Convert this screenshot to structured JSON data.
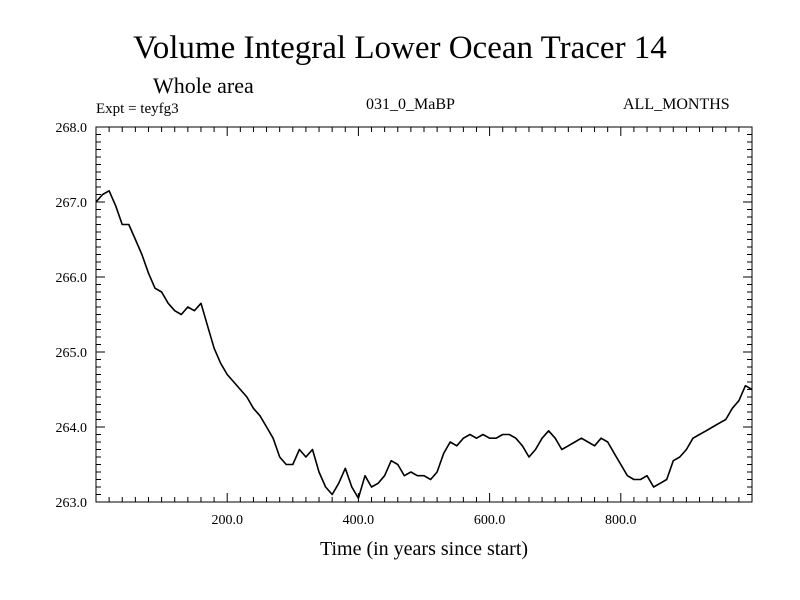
{
  "chart_data": {
    "type": "line",
    "title": "Volume Integral Lower Ocean Tracer 14",
    "subtitle": "Whole area",
    "experiment_label": "Expt = teyfg3",
    "run_label": "031_0_MaBP",
    "period_label": "ALL_MONTHS",
    "xlabel": "Time (in years since start)",
    "ylabel": "",
    "xlim": [
      0,
      1000
    ],
    "ylim": [
      263.0,
      268.0
    ],
    "xticks": [
      200.0,
      400.0,
      600.0,
      800.0
    ],
    "xtick_labels": [
      "200.0",
      "400.0",
      "600.0",
      "800.0"
    ],
    "yticks": [
      263.0,
      264.0,
      265.0,
      266.0,
      267.0,
      268.0
    ],
    "ytick_labels": [
      "263.0",
      "264.0",
      "265.0",
      "266.0",
      "267.0",
      "268.0"
    ],
    "grid": false,
    "series": [
      {
        "name": "Lower Ocean Tracer 14",
        "x": [
          0,
          10,
          20,
          30,
          40,
          50,
          60,
          70,
          80,
          90,
          100,
          110,
          120,
          130,
          140,
          150,
          160,
          170,
          180,
          190,
          200,
          210,
          220,
          230,
          240,
          250,
          260,
          270,
          280,
          290,
          300,
          310,
          320,
          330,
          340,
          350,
          360,
          370,
          380,
          390,
          400,
          410,
          420,
          430,
          440,
          450,
          460,
          470,
          480,
          490,
          500,
          510,
          520,
          530,
          540,
          550,
          560,
          570,
          580,
          590,
          600,
          610,
          620,
          630,
          640,
          650,
          660,
          670,
          680,
          690,
          700,
          710,
          720,
          730,
          740,
          750,
          760,
          770,
          780,
          790,
          800,
          810,
          820,
          830,
          840,
          850,
          860,
          870,
          880,
          890,
          900,
          910,
          920,
          930,
          940,
          950,
          960,
          970,
          980,
          990,
          1000
        ],
        "values": [
          267.0,
          267.1,
          267.15,
          266.95,
          266.7,
          266.7,
          266.5,
          266.3,
          266.05,
          265.85,
          265.8,
          265.65,
          265.55,
          265.5,
          265.6,
          265.55,
          265.65,
          265.35,
          265.05,
          264.85,
          264.7,
          264.6,
          264.5,
          264.4,
          264.25,
          264.15,
          264.0,
          263.85,
          263.6,
          263.5,
          263.5,
          263.7,
          263.6,
          263.7,
          263.4,
          263.2,
          263.1,
          263.25,
          263.45,
          263.2,
          263.05,
          263.35,
          263.2,
          263.25,
          263.35,
          263.55,
          263.5,
          263.35,
          263.4,
          263.35,
          263.35,
          263.3,
          263.4,
          263.65,
          263.8,
          263.75,
          263.85,
          263.9,
          263.85,
          263.9,
          263.85,
          263.85,
          263.9,
          263.9,
          263.85,
          263.75,
          263.6,
          263.7,
          263.85,
          263.95,
          263.85,
          263.7,
          263.75,
          263.8,
          263.85,
          263.8,
          263.75,
          263.85,
          263.8,
          263.65,
          263.5,
          263.35,
          263.3,
          263.3,
          263.35,
          263.2,
          263.25,
          263.3,
          263.55,
          263.6,
          263.7,
          263.85,
          263.9,
          263.95,
          264.0,
          264.05,
          264.1,
          264.25,
          264.35,
          264.55,
          264.5
        ]
      }
    ]
  }
}
